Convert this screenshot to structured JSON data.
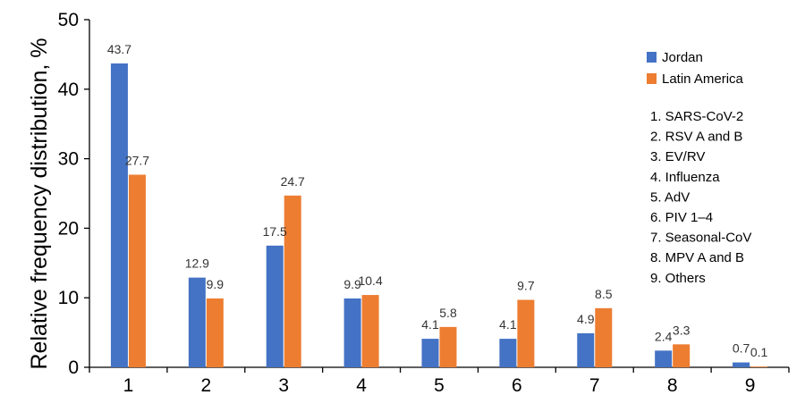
{
  "chart_data": {
    "type": "bar",
    "title": "",
    "xlabel": "",
    "ylabel": "Relative frequency distribution, %",
    "ylim": [
      0,
      50
    ],
    "yticks": [
      0,
      10,
      20,
      30,
      40,
      50
    ],
    "categories": [
      "1",
      "2",
      "3",
      "4",
      "5",
      "6",
      "7",
      "8",
      "9"
    ],
    "series": [
      {
        "name": "Jordan",
        "color": "#4472C4",
        "values": [
          43.7,
          12.9,
          17.5,
          9.9,
          4.1,
          4.1,
          4.9,
          2.4,
          0.7
        ]
      },
      {
        "name": "Latin America",
        "color": "#ED7D31",
        "values": [
          27.7,
          9.9,
          24.7,
          10.4,
          5.8,
          9.7,
          8.5,
          3.3,
          0.1
        ]
      }
    ],
    "data_labels": {
      "Jordan": [
        "43.7",
        "12.9",
        "17.5",
        "9.9",
        "4.1",
        "4.1",
        "4.9",
        "2.4",
        "0.7"
      ],
      "Latin America": [
        "27.7",
        "9.9",
        "24.7",
        "10.4",
        "5.8",
        "9.7",
        "8.5",
        "3.3",
        "0.1"
      ]
    },
    "grid": false,
    "legend_position": "right",
    "category_key": [
      "1. SARS-CoV-2",
      "2. RSV A and B",
      "3. EV/RV",
      "4. Influenza",
      "5. AdV",
      "6. PIV 1–4",
      "7. Seasonal-CoV",
      "8. MPV A and B",
      "9. Others"
    ]
  }
}
